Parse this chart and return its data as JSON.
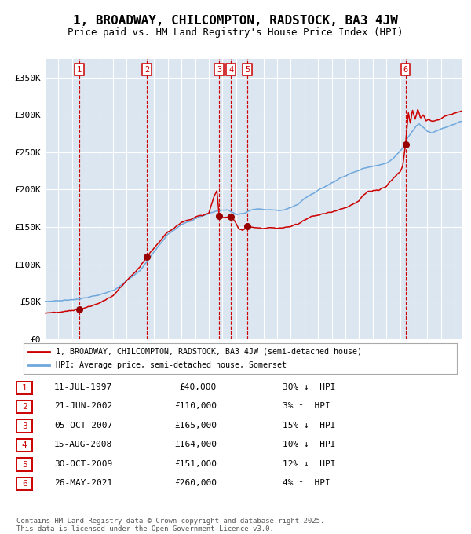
{
  "title": "1, BROADWAY, CHILCOMPTON, RADSTOCK, BA3 4JW",
  "subtitle": "Price paid vs. HM Land Registry's House Price Index (HPI)",
  "legend_label_red": "1, BROADWAY, CHILCOMPTON, RADSTOCK, BA3 4JW (semi-detached house)",
  "legend_label_blue": "HPI: Average price, semi-detached house, Somerset",
  "footer": "Contains HM Land Registry data © Crown copyright and database right 2025.\nThis data is licensed under the Open Government Licence v3.0.",
  "sales": [
    {
      "num": 1,
      "date_x": 1997.53,
      "price": 40000,
      "label": "11-JUL-1997",
      "amount": "£40,000",
      "pct": "30%",
      "dir": "↓",
      "rel": "HPI"
    },
    {
      "num": 2,
      "date_x": 2002.47,
      "price": 110000,
      "label": "21-JUN-2002",
      "amount": "£110,000",
      "pct": "3%",
      "dir": "↑",
      "rel": "HPI"
    },
    {
      "num": 3,
      "date_x": 2007.76,
      "price": 165000,
      "label": "05-OCT-2007",
      "amount": "£165,000",
      "pct": "15%",
      "dir": "↓",
      "rel": "HPI"
    },
    {
      "num": 4,
      "date_x": 2008.62,
      "price": 164000,
      "label": "15-AUG-2008",
      "amount": "£164,000",
      "pct": "10%",
      "dir": "↓",
      "rel": "HPI"
    },
    {
      "num": 5,
      "date_x": 2009.83,
      "price": 151000,
      "label": "30-OCT-2009",
      "amount": "£151,000",
      "pct": "12%",
      "dir": "↓",
      "rel": "HPI"
    },
    {
      "num": 6,
      "date_x": 2021.4,
      "price": 260000,
      "label": "26-MAY-2021",
      "amount": "£260,000",
      "pct": "4%",
      "dir": "↑",
      "rel": "HPI"
    }
  ],
  "ylim": [
    0,
    375000
  ],
  "xlim": [
    1995.0,
    2025.5
  ],
  "yticks": [
    0,
    50000,
    100000,
    150000,
    200000,
    250000,
    300000,
    350000
  ],
  "ytick_labels": [
    "£0",
    "£50K",
    "£100K",
    "£150K",
    "£200K",
    "£250K",
    "£300K",
    "£350K"
  ],
  "red_color": "#cc0000",
  "blue_color": "#6fa8dc",
  "marker_color": "#990000",
  "vline_color": "#cc0000",
  "grid_color": "#ffffff",
  "box_color": "#cc0000",
  "plot_bg_color": "#dce6f1",
  "fig_bg_color": "#ffffff",
  "hpi_anchors": [
    [
      1995.0,
      50000
    ],
    [
      1996.0,
      51500
    ],
    [
      1997.0,
      52500
    ],
    [
      1998.0,
      55000
    ],
    [
      1999.0,
      59000
    ],
    [
      2000.0,
      65000
    ],
    [
      2001.0,
      78000
    ],
    [
      2002.0,
      92000
    ],
    [
      2003.0,
      117000
    ],
    [
      2004.0,
      140000
    ],
    [
      2005.0,
      153000
    ],
    [
      2006.0,
      161000
    ],
    [
      2007.0,
      168000
    ],
    [
      2007.5,
      171000
    ],
    [
      2008.0,
      173000
    ],
    [
      2008.5,
      172000
    ],
    [
      2009.0,
      167000
    ],
    [
      2009.5,
      168000
    ],
    [
      2010.0,
      172000
    ],
    [
      2010.5,
      174000
    ],
    [
      2011.0,
      174000
    ],
    [
      2011.5,
      173000
    ],
    [
      2012.0,
      172000
    ],
    [
      2012.5,
      173000
    ],
    [
      2013.0,
      176000
    ],
    [
      2013.5,
      180000
    ],
    [
      2014.0,
      188000
    ],
    [
      2014.5,
      194000
    ],
    [
      2015.0,
      199000
    ],
    [
      2015.5,
      204000
    ],
    [
      2016.0,
      209000
    ],
    [
      2016.5,
      214000
    ],
    [
      2017.0,
      218000
    ],
    [
      2017.5,
      222000
    ],
    [
      2018.0,
      226000
    ],
    [
      2018.5,
      229000
    ],
    [
      2019.0,
      231000
    ],
    [
      2019.5,
      233000
    ],
    [
      2020.0,
      235000
    ],
    [
      2020.5,
      242000
    ],
    [
      2021.0,
      252000
    ],
    [
      2021.3,
      258000
    ],
    [
      2021.5,
      268000
    ],
    [
      2021.7,
      273000
    ],
    [
      2022.0,
      280000
    ],
    [
      2022.2,
      285000
    ],
    [
      2022.4,
      288000
    ],
    [
      2022.6,
      285000
    ],
    [
      2022.8,
      282000
    ],
    [
      2023.0,
      278000
    ],
    [
      2023.3,
      276000
    ],
    [
      2023.6,
      278000
    ],
    [
      2024.0,
      281000
    ],
    [
      2024.3,
      283000
    ],
    [
      2024.6,
      285000
    ],
    [
      2025.0,
      288000
    ],
    [
      2025.4,
      291000
    ]
  ],
  "red_anchors": [
    [
      1995.0,
      35000
    ],
    [
      1996.0,
      36000
    ],
    [
      1997.0,
      38000
    ],
    [
      1997.53,
      40000
    ],
    [
      1998.0,
      42000
    ],
    [
      1999.0,
      48000
    ],
    [
      2000.0,
      58000
    ],
    [
      2001.0,
      78000
    ],
    [
      2002.0,
      97000
    ],
    [
      2002.47,
      110000
    ],
    [
      2003.0,
      122000
    ],
    [
      2004.0,
      143000
    ],
    [
      2005.0,
      156000
    ],
    [
      2006.0,
      163000
    ],
    [
      2007.0,
      168000
    ],
    [
      2007.4,
      192000
    ],
    [
      2007.6,
      198000
    ],
    [
      2007.76,
      165000
    ],
    [
      2008.0,
      162000
    ],
    [
      2008.3,
      163000
    ],
    [
      2008.62,
      164000
    ],
    [
      2008.9,
      158000
    ],
    [
      2009.2,
      148000
    ],
    [
      2009.5,
      145000
    ],
    [
      2009.83,
      151000
    ],
    [
      2010.0,
      150000
    ],
    [
      2010.5,
      149000
    ],
    [
      2011.0,
      148000
    ],
    [
      2011.5,
      149000
    ],
    [
      2012.0,
      148000
    ],
    [
      2012.5,
      149000
    ],
    [
      2013.0,
      151000
    ],
    [
      2013.5,
      154000
    ],
    [
      2014.0,
      159000
    ],
    [
      2014.5,
      164000
    ],
    [
      2015.0,
      166000
    ],
    [
      2015.5,
      168000
    ],
    [
      2016.0,
      170000
    ],
    [
      2016.5,
      173000
    ],
    [
      2017.0,
      176000
    ],
    [
      2017.5,
      180000
    ],
    [
      2018.0,
      185000
    ],
    [
      2018.3,
      192000
    ],
    [
      2018.6,
      197000
    ],
    [
      2019.0,
      198000
    ],
    [
      2019.5,
      200000
    ],
    [
      2020.0,
      204000
    ],
    [
      2020.5,
      215000
    ],
    [
      2021.0,
      224000
    ],
    [
      2021.2,
      232000
    ],
    [
      2021.4,
      260000
    ],
    [
      2021.6,
      303000
    ],
    [
      2021.75,
      288000
    ],
    [
      2021.9,
      307000
    ],
    [
      2022.1,
      294000
    ],
    [
      2022.3,
      308000
    ],
    [
      2022.5,
      296000
    ],
    [
      2022.7,
      300000
    ],
    [
      2022.9,
      292000
    ],
    [
      2023.1,
      294000
    ],
    [
      2023.4,
      291000
    ],
    [
      2023.7,
      293000
    ],
    [
      2024.0,
      295000
    ],
    [
      2024.3,
      298000
    ],
    [
      2024.6,
      300000
    ],
    [
      2025.0,
      302000
    ],
    [
      2025.4,
      305000
    ]
  ]
}
